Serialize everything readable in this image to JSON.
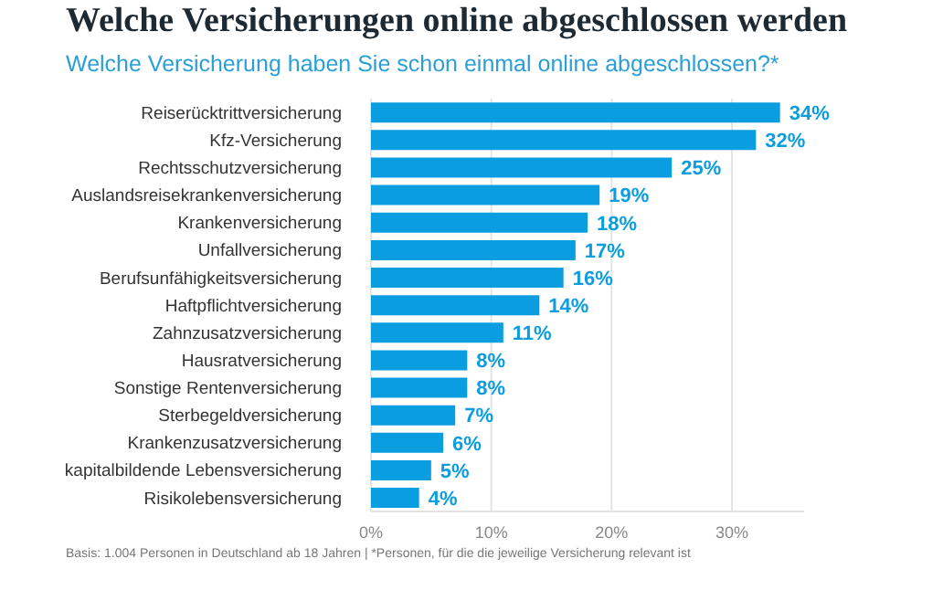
{
  "chart_data": {
    "type": "bar",
    "orientation": "horizontal",
    "title": "Welche Versicherungen online abgeschlossen werden",
    "subtitle": "Welche Versicherung haben Sie schon einmal online abgeschlossen?*",
    "categories": [
      "Reiserücktrittversicherung",
      "Kfz-Versicherung",
      "Rechtsschutzversicherung",
      "Auslandsreisekrankenversicherung",
      "Krankenversicherung",
      "Unfallversicherung",
      "Berufsunfähigkeitsversicherung",
      "Haftpflichtversicherung",
      "Zahnzusatzversicherung",
      "Hausratversicherung",
      "Sonstige Rentenversicherung",
      "Sterbegeldversicherung",
      "Krankenzusatzversicherung",
      "kapitalbildende Lebensversicherung",
      "Risikolebensversicherung"
    ],
    "values": [
      34,
      32,
      25,
      19,
      18,
      17,
      16,
      14,
      11,
      8,
      8,
      7,
      6,
      5,
      4
    ],
    "value_labels": [
      "34%",
      "32%",
      "25%",
      "19%",
      "18%",
      "17%",
      "16%",
      "14%",
      "11%",
      "8%",
      "8%",
      "7%",
      "6%",
      "5%",
      "4%"
    ],
    "color": "#0a9de0",
    "xlim": [
      0,
      36
    ],
    "xticks": [
      {
        "value": 0,
        "label": "0%"
      },
      {
        "value": 10,
        "label": "10%"
      },
      {
        "value": 20,
        "label": "20%"
      },
      {
        "value": 30,
        "label": "30%"
      }
    ],
    "grid": "x",
    "annotations": [
      "Basis: 1.004 Personen in Deutschland ab 18 Jahren | *Personen, für die die jeweilige Versicherung relevant ist"
    ]
  }
}
